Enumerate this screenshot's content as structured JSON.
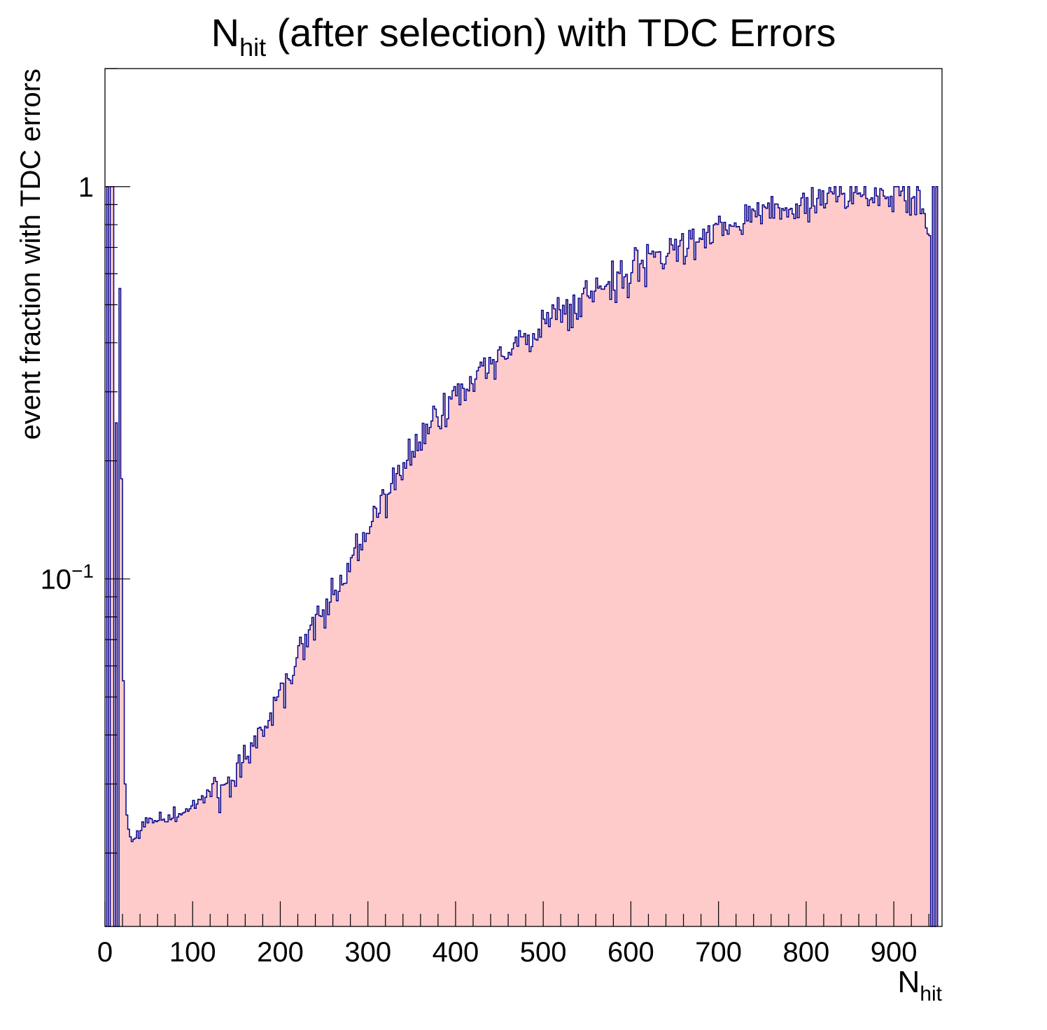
{
  "title": {
    "main": "N",
    "sub": "hit",
    "rest": " (after selection) with TDC Errors"
  },
  "chart_data": {
    "type": "bar",
    "histogram": true,
    "title": "N_hit (after selection) with TDC Errors",
    "xlabel": {
      "main": "N",
      "sub": "hit"
    },
    "ylabel": "event fraction with TDC errors",
    "xlim": [
      0,
      955
    ],
    "ylim": [
      0.013,
      2.0
    ],
    "yscale": "log",
    "grid": false,
    "legend": "none",
    "x_major_ticks": [
      0,
      100,
      200,
      300,
      400,
      500,
      600,
      700,
      800,
      900
    ],
    "x_tick_labels": [
      "0",
      "100",
      "200",
      "300",
      "400",
      "500",
      "600",
      "700",
      "800",
      "900"
    ],
    "y_tick_labels": [
      {
        "value": 1,
        "base": "1",
        "exp": ""
      },
      {
        "value": 0.1,
        "base": "10",
        "exp": "−1"
      }
    ],
    "bin_width": 2,
    "series": [
      {
        "fill_color": "#fecaca",
        "line_color": "#00008b",
        "points": [
          [
            0,
            0.013
          ],
          [
            2,
            1.0
          ],
          [
            4,
            0.013
          ],
          [
            6,
            1.0
          ],
          [
            8,
            1.0
          ],
          [
            10,
            0.013
          ],
          [
            12,
            0.25
          ],
          [
            14,
            0.013
          ],
          [
            16,
            0.55
          ],
          [
            18,
            0.18
          ],
          [
            20,
            0.055
          ],
          [
            22,
            0.03
          ],
          [
            24,
            0.025
          ],
          [
            26,
            0.023
          ],
          [
            28,
            0.022
          ],
          [
            30,
            0.022
          ],
          [
            40,
            0.023
          ],
          [
            50,
            0.024
          ],
          [
            60,
            0.0245
          ],
          [
            70,
            0.0245
          ],
          [
            80,
            0.025
          ],
          [
            90,
            0.0255
          ],
          [
            100,
            0.0265
          ],
          [
            110,
            0.0275
          ],
          [
            120,
            0.028
          ],
          [
            130,
            0.029
          ],
          [
            140,
            0.031
          ],
          [
            150,
            0.033
          ],
          [
            160,
            0.036
          ],
          [
            170,
            0.039
          ],
          [
            180,
            0.042
          ],
          [
            190,
            0.046
          ],
          [
            200,
            0.051
          ],
          [
            210,
            0.057
          ],
          [
            220,
            0.063
          ],
          [
            230,
            0.069
          ],
          [
            240,
            0.076
          ],
          [
            250,
            0.083
          ],
          [
            260,
            0.091
          ],
          [
            270,
            0.101
          ],
          [
            280,
            0.111
          ],
          [
            290,
            0.122
          ],
          [
            300,
            0.135
          ],
          [
            310,
            0.148
          ],
          [
            320,
            0.162
          ],
          [
            330,
            0.177
          ],
          [
            340,
            0.192
          ],
          [
            350,
            0.208
          ],
          [
            360,
            0.224
          ],
          [
            370,
            0.24
          ],
          [
            380,
            0.257
          ],
          [
            390,
            0.273
          ],
          [
            400,
            0.29
          ],
          [
            410,
            0.306
          ],
          [
            420,
            0.322
          ],
          [
            430,
            0.338
          ],
          [
            440,
            0.354
          ],
          [
            450,
            0.37
          ],
          [
            460,
            0.386
          ],
          [
            470,
            0.402
          ],
          [
            480,
            0.417
          ],
          [
            490,
            0.433
          ],
          [
            500,
            0.449
          ],
          [
            510,
            0.465
          ],
          [
            520,
            0.481
          ],
          [
            530,
            0.497
          ],
          [
            540,
            0.513
          ],
          [
            550,
            0.53
          ],
          [
            560,
            0.546
          ],
          [
            570,
            0.562
          ],
          [
            580,
            0.578
          ],
          [
            590,
            0.594
          ],
          [
            600,
            0.61
          ],
          [
            610,
            0.626
          ],
          [
            620,
            0.643
          ],
          [
            630,
            0.66
          ],
          [
            640,
            0.676
          ],
          [
            650,
            0.692
          ],
          [
            660,
            0.708
          ],
          [
            670,
            0.724
          ],
          [
            680,
            0.74
          ],
          [
            690,
            0.756
          ],
          [
            700,
            0.772
          ],
          [
            710,
            0.787
          ],
          [
            720,
            0.802
          ],
          [
            730,
            0.817
          ],
          [
            740,
            0.832
          ],
          [
            750,
            0.846
          ],
          [
            760,
            0.859
          ],
          [
            770,
            0.872
          ],
          [
            780,
            0.884
          ],
          [
            790,
            0.895
          ],
          [
            800,
            0.905
          ],
          [
            810,
            0.914
          ],
          [
            820,
            0.922
          ],
          [
            830,
            0.929
          ],
          [
            840,
            0.935
          ],
          [
            850,
            0.94
          ],
          [
            860,
            0.944
          ],
          [
            870,
            0.947
          ],
          [
            880,
            0.95
          ],
          [
            890,
            0.952
          ],
          [
            900,
            0.954
          ],
          [
            910,
            0.955
          ],
          [
            920,
            0.955
          ],
          [
            930,
            0.95
          ],
          [
            940,
            0.75
          ],
          [
            942,
            0.013
          ],
          [
            944,
            1.0
          ],
          [
            946,
            0.013
          ],
          [
            948,
            1.0
          ],
          [
            950,
            0.013
          ]
        ]
      }
    ]
  }
}
